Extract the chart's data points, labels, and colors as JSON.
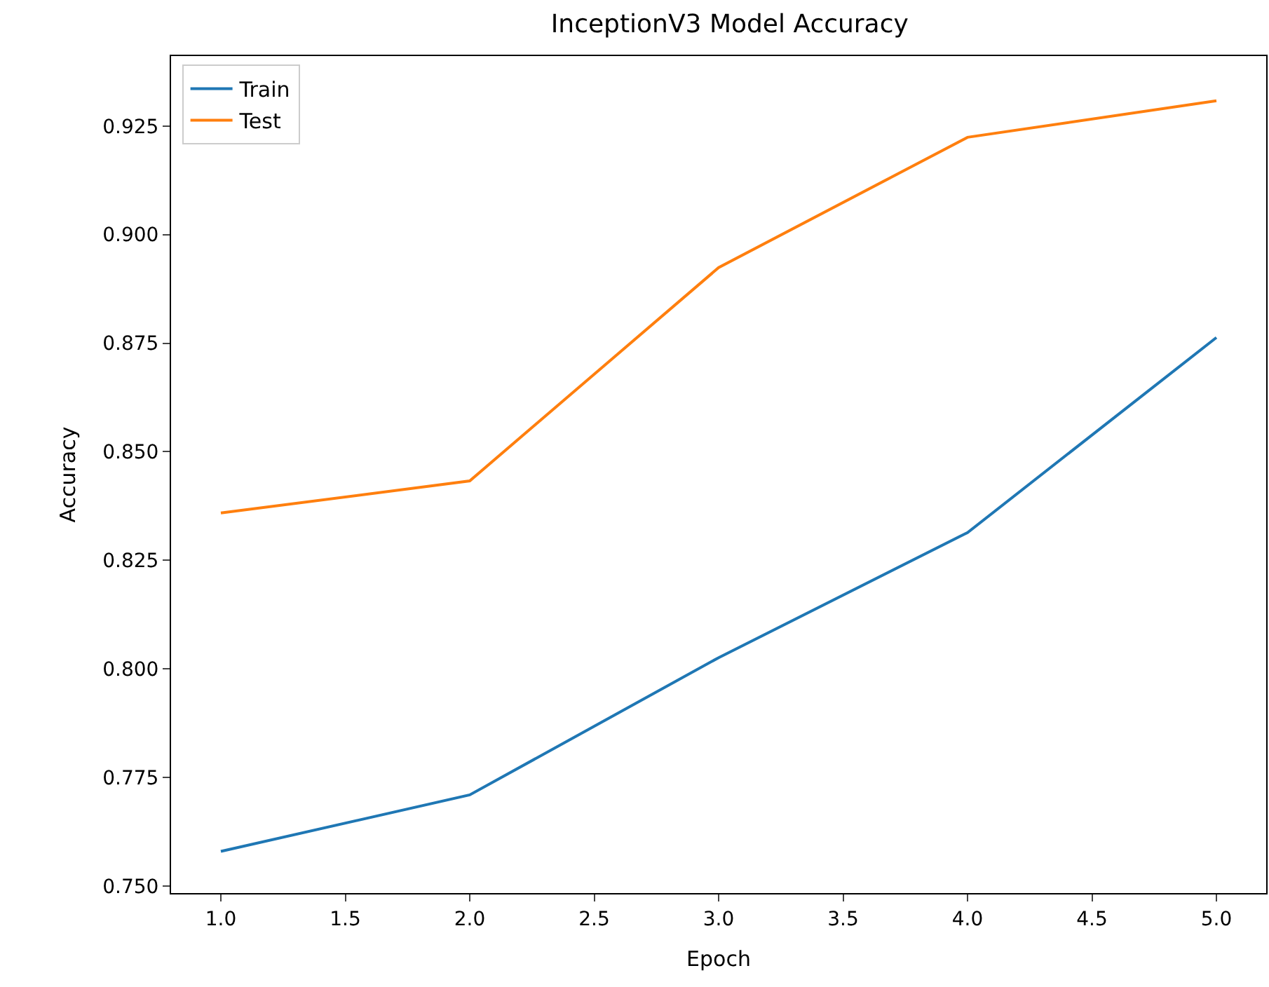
{
  "chart_data": {
    "type": "line",
    "title": "InceptionV3 Model Accuracy",
    "xlabel": "Epoch",
    "ylabel": "Accuracy",
    "x": [
      1,
      2,
      3,
      4,
      5
    ],
    "series": [
      {
        "name": "Train",
        "color": "#1f77b4",
        "values": [
          0.758,
          0.771,
          0.8026,
          0.8314,
          0.8763
        ]
      },
      {
        "name": "Test",
        "color": "#ff7f0e",
        "values": [
          0.8359,
          0.8433,
          0.8924,
          0.9224,
          0.9308
        ]
      }
    ],
    "xlim": [
      0.8,
      5.2
    ],
    "xticks": [
      {
        "value": 1,
        "label": "1.0"
      },
      {
        "value": 1.5,
        "label": "1.5"
      },
      {
        "value": 2,
        "label": "2.0"
      },
      {
        "value": 2.5,
        "label": "2.5"
      },
      {
        "value": 3,
        "label": "3.0"
      },
      {
        "value": 3.5,
        "label": "3.5"
      },
      {
        "value": 4,
        "label": "4.0"
      },
      {
        "value": 4.5,
        "label": "4.5"
      },
      {
        "value": 5,
        "label": "5.0"
      }
    ],
    "ylim": [
      0.7484,
      0.9411
    ],
    "yticks": [
      {
        "value": 0.75,
        "label": "0.750"
      },
      {
        "value": 0.775,
        "label": "0.775"
      },
      {
        "value": 0.8,
        "label": "0.800"
      },
      {
        "value": 0.825,
        "label": "0.825"
      },
      {
        "value": 0.85,
        "label": "0.850"
      },
      {
        "value": 0.875,
        "label": "0.875"
      },
      {
        "value": 0.9,
        "label": "0.900"
      },
      {
        "value": 0.925,
        "label": "0.925"
      }
    ],
    "legend": "top left",
    "marker": "none",
    "line_style": "solid"
  }
}
